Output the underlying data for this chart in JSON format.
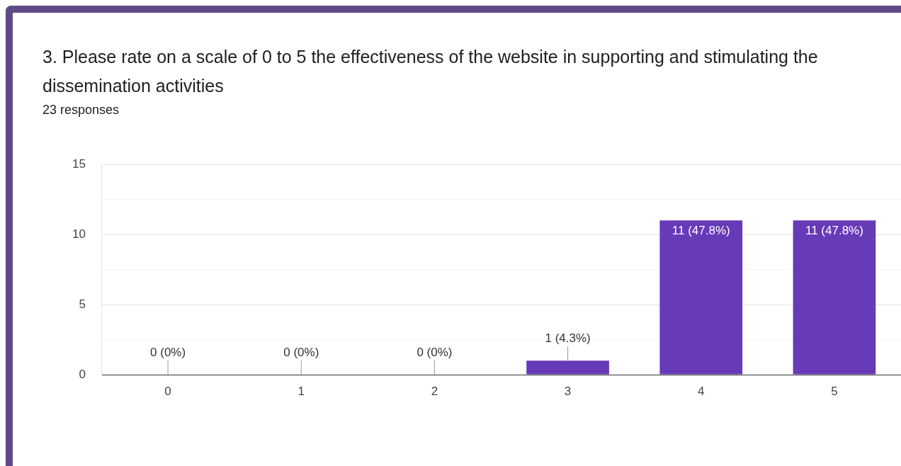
{
  "chart_data": {
    "type": "bar",
    "title": "3. Please rate on a scale of 0 to 5 the effectiveness of the website in supporting and stimulating the dissemination activities",
    "subtitle": "23 responses",
    "categories": [
      "0",
      "1",
      "2",
      "3",
      "4",
      "5"
    ],
    "values": [
      0,
      0,
      0,
      1,
      11,
      11
    ],
    "value_labels": [
      "0 (0%)",
      "0 (0%)",
      "0 (0%)",
      "1 (4.3%)",
      "11 (47.8%)",
      "11 (47.8%)"
    ],
    "color": "#673ab7",
    "ylim": [
      0,
      15
    ],
    "yticks": [
      0,
      {
        "value": 2.5,
        "label": null
      },
      5,
      {
        "value": 7.5,
        "label": null
      },
      10,
      {
        "value": 12.5,
        "label": null
      },
      15
    ],
    "grid": "y"
  }
}
